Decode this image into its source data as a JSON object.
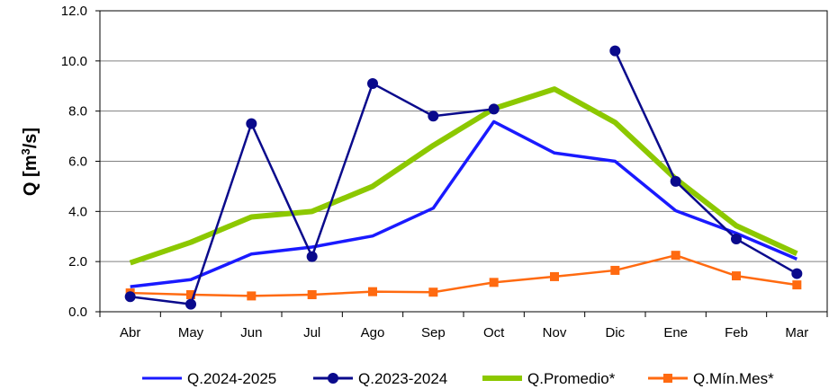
{
  "chart_data": {
    "type": "line",
    "ylabel": "Q [m³/s]",
    "ylabel_main": "Q [m",
    "ylabel_sup": "3",
    "ylabel_tail": "/s]",
    "ylim": [
      0,
      12
    ],
    "yticks": [
      "0.0",
      "2.0",
      "4.0",
      "6.0",
      "8.0",
      "10.0",
      "12.0"
    ],
    "grid": true,
    "legend_position": "bottom",
    "categories": [
      "Abr",
      "May",
      "Jun",
      "Jul",
      "Ago",
      "Sep",
      "Oct",
      "Nov",
      "Dic",
      "Ene",
      "Feb",
      "Mar"
    ],
    "series": [
      {
        "name": "Q.2024-2025",
        "color": "#1a1aff",
        "marker": "none",
        "values": [
          1.0,
          1.28,
          2.3,
          2.58,
          3.02,
          4.13,
          7.58,
          6.33,
          6.0,
          4.03,
          3.13,
          2.1
        ]
      },
      {
        "name": "Q.2023-2024",
        "color": "#0a0a8c",
        "marker": "circle",
        "values": [
          0.6,
          0.3,
          7.5,
          2.2,
          9.1,
          7.8,
          8.08,
          null,
          10.4,
          5.2,
          2.9,
          1.52
        ]
      },
      {
        "name": "Q.Promedio*",
        "color": "#8cc800",
        "marker": "none",
        "values": [
          1.95,
          2.77,
          3.78,
          4.0,
          5.0,
          6.63,
          8.1,
          8.88,
          7.55,
          5.3,
          3.43,
          2.32
        ]
      },
      {
        "name": "Q.Mín.Mes*",
        "color": "#ff6a10",
        "marker": "square",
        "values": [
          0.75,
          0.68,
          0.63,
          0.68,
          0.8,
          0.78,
          1.17,
          1.4,
          1.65,
          2.25,
          1.43,
          1.07
        ]
      }
    ]
  }
}
